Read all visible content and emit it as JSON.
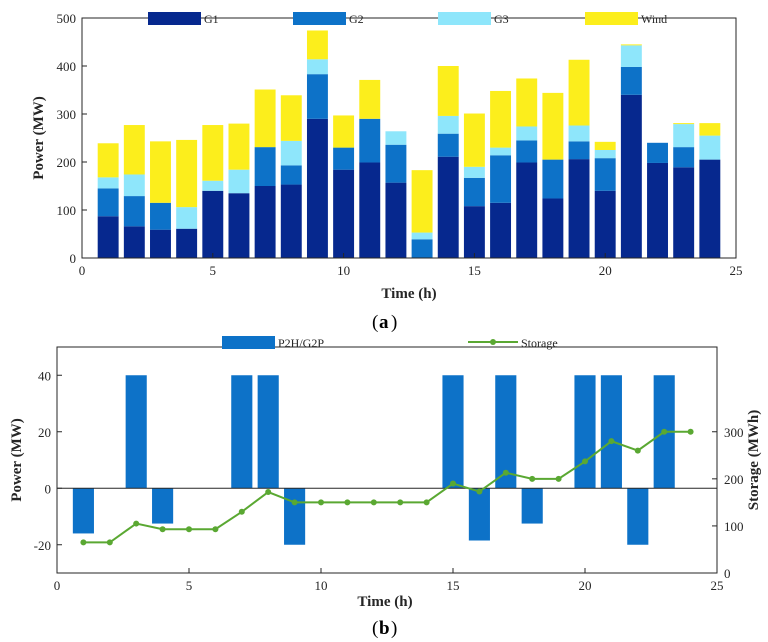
{
  "chart_data": [
    {
      "type": "bar",
      "stacked": true,
      "panel_label": "a",
      "x": [
        1,
        2,
        3,
        4,
        5,
        6,
        7,
        8,
        9,
        10,
        11,
        12,
        13,
        14,
        15,
        16,
        17,
        18,
        19,
        20,
        21,
        22,
        23,
        24
      ],
      "xlim": [
        0,
        25
      ],
      "ylim": [
        0,
        500
      ],
      "xticks": [
        "0",
        "5",
        "10",
        "15",
        "20",
        "25"
      ],
      "yticks": [
        "0",
        "100",
        "200",
        "300",
        "400",
        "500"
      ],
      "xlabel": "Time (h)",
      "ylabel": "Power (MW)",
      "legend_position": "top",
      "series": [
        {
          "name": "G1",
          "color": "#06288e",
          "values": [
            87,
            66,
            59,
            61,
            140,
            135,
            150,
            153,
            290,
            184,
            199,
            157,
            0,
            211,
            108,
            115,
            199,
            124,
            206,
            140,
            340,
            198,
            189,
            205
          ]
        },
        {
          "name": "G2",
          "color": "#0d72c8",
          "values": [
            58,
            63,
            56,
            0,
            0,
            0,
            81,
            40,
            93,
            46,
            91,
            79,
            39,
            48,
            59,
            99,
            46,
            81,
            37,
            68,
            58,
            42,
            42,
            0
          ]
        },
        {
          "name": "G3",
          "color": "#8ee6fb",
          "values": [
            23,
            45,
            0,
            45,
            21,
            49,
            0,
            51,
            31,
            0,
            0,
            28,
            14,
            37,
            23,
            16,
            29,
            0,
            33,
            17,
            45,
            0,
            48,
            50
          ]
        },
        {
          "name": "Wind",
          "color": "#fcee1c",
          "values": [
            71,
            103,
            128,
            140,
            116,
            96,
            120,
            95,
            60,
            67,
            81,
            0,
            130,
            104,
            111,
            118,
            100,
            139,
            137,
            17,
            2,
            0,
            2,
            26
          ]
        }
      ]
    },
    {
      "type": "bar+line",
      "panel_label": "b",
      "x": [
        1,
        2,
        3,
        4,
        5,
        6,
        7,
        8,
        9,
        10,
        11,
        12,
        13,
        14,
        15,
        16,
        17,
        18,
        19,
        20,
        21,
        22,
        23,
        24
      ],
      "xlim": [
        0,
        25
      ],
      "ylim_left": [
        -30,
        50
      ],
      "ylim_right": [
        0,
        480
      ],
      "xticks": [
        "0",
        "5",
        "10",
        "15",
        "20",
        "25"
      ],
      "yticks_left": [
        "-20",
        "0",
        "20",
        "40"
      ],
      "yticks_right": [
        "0",
        "100",
        "200",
        "300"
      ],
      "xlabel": "Time (h)",
      "ylabel_left": "Power (MW)",
      "ylabel_right": "Storage (MWh)",
      "legend_position": "top",
      "series": [
        {
          "name": "P2H/G2P",
          "type": "bar",
          "axis": "left",
          "color": "#0d72c8",
          "values": [
            -16,
            0,
            40,
            -12.5,
            0,
            0,
            40,
            40,
            -20,
            0,
            0,
            0,
            0,
            0,
            40,
            -18.5,
            40,
            -12.5,
            0,
            40,
            40,
            -20,
            40,
            0
          ]
        },
        {
          "name": "Storage",
          "type": "line",
          "axis": "right",
          "color": "#5aa832",
          "values": [
            65,
            65,
            105,
            93,
            93,
            93,
            130,
            172,
            150,
            150,
            150,
            150,
            150,
            150,
            190,
            173,
            213,
            200,
            200,
            237,
            280,
            260,
            300,
            300
          ]
        }
      ]
    }
  ]
}
